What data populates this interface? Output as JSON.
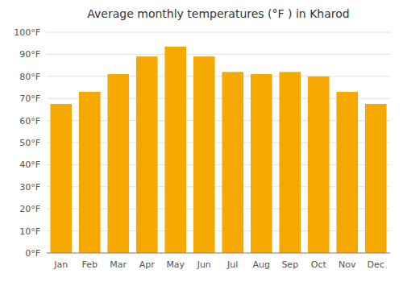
{
  "chart_data": {
    "type": "bar",
    "title": "Average monthly temperatures (°F ) in Kharod",
    "categories": [
      "Jan",
      "Feb",
      "Mar",
      "Apr",
      "May",
      "Jun",
      "Jul",
      "Aug",
      "Sep",
      "Oct",
      "Nov",
      "Dec"
    ],
    "values": [
      67.5,
      73,
      81,
      89,
      93.5,
      89,
      82,
      81,
      82,
      80,
      73,
      67.5
    ],
    "color": "#F5A800",
    "ylim": [
      0,
      100
    ],
    "yticks": [
      {
        "value": 0,
        "label": "0°F"
      },
      {
        "value": 10,
        "label": "10°F"
      },
      {
        "value": 20,
        "label": "20°F"
      },
      {
        "value": 30,
        "label": "30°F"
      },
      {
        "value": 40,
        "label": "40°F"
      },
      {
        "value": 50,
        "label": "50°F"
      },
      {
        "value": 60,
        "label": "60°F"
      },
      {
        "value": 70,
        "label": "70°F"
      },
      {
        "value": 80,
        "label": "80°F"
      },
      {
        "value": 90,
        "label": "90°F"
      },
      {
        "value": 100,
        "label": "100°F"
      }
    ],
    "grid": true
  }
}
